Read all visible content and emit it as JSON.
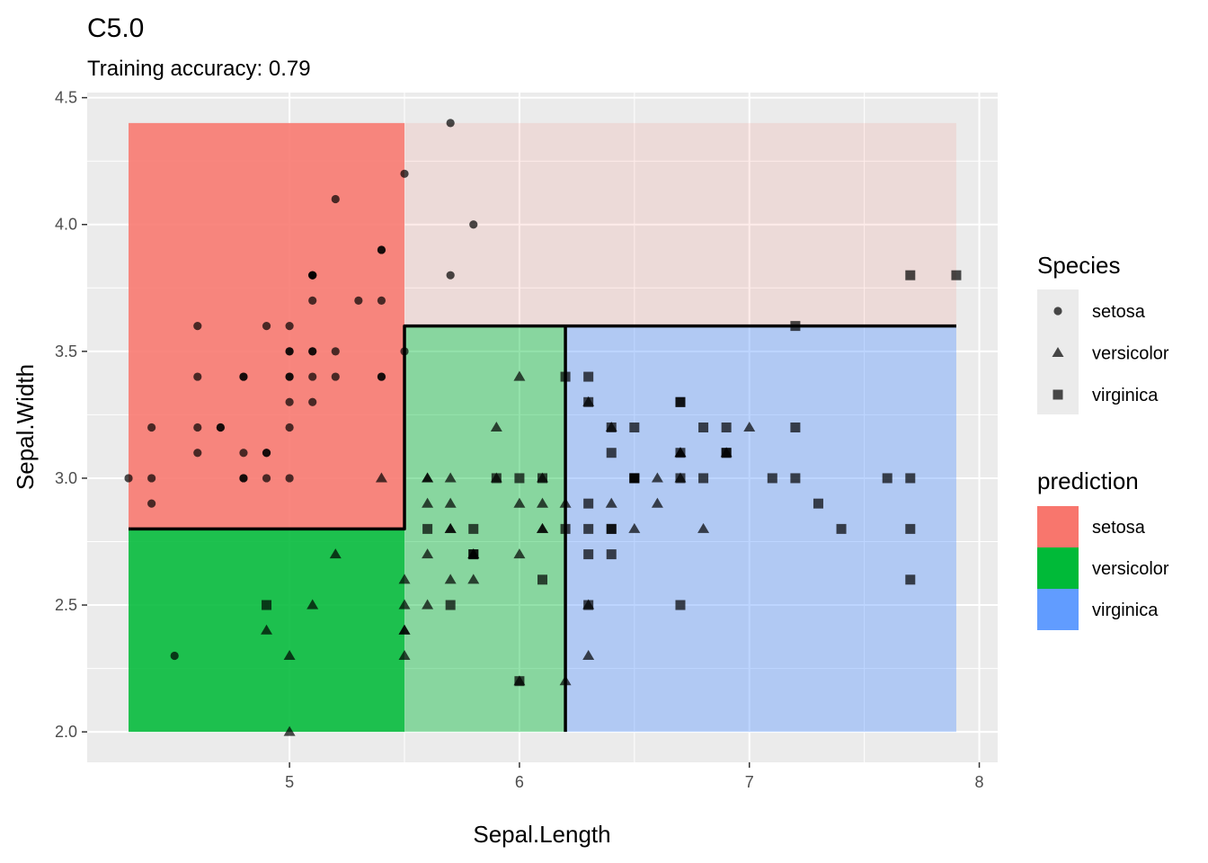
{
  "chart_data": {
    "type": "scatter",
    "title": "C5.0",
    "subtitle": "Training accuracy: 0.79",
    "xlabel": "Sepal.Length",
    "ylabel": "Sepal.Width",
    "xlim": [
      4.12,
      8.08
    ],
    "ylim": [
      1.88,
      4.52
    ],
    "x_ticks": [
      "5",
      "6",
      "7",
      "8"
    ],
    "y_ticks": [
      "2.0",
      "2.5",
      "3.0",
      "3.5",
      "4.0",
      "4.5"
    ],
    "grid": true,
    "legend_position": "right",
    "prediction_regions": [
      {
        "class": "setosa",
        "x": [
          4.3,
          5.5
        ],
        "y": [
          2.8,
          4.4
        ],
        "highlight": true
      },
      {
        "class": "setosa",
        "x": [
          5.5,
          7.9
        ],
        "y": [
          3.6,
          4.4
        ],
        "highlight": false
      },
      {
        "class": "versicolor",
        "x": [
          4.3,
          5.5
        ],
        "y": [
          2.0,
          2.8
        ],
        "highlight": true
      },
      {
        "class": "versicolor",
        "x": [
          5.5,
          6.2
        ],
        "y": [
          2.0,
          3.6
        ],
        "highlight": false
      },
      {
        "class": "virginica",
        "x": [
          6.2,
          7.9
        ],
        "y": [
          2.0,
          3.6
        ],
        "highlight": false
      }
    ],
    "decision_boundary": [
      [
        [
          4.3,
          2.8
        ],
        [
          5.5,
          2.8
        ],
        [
          5.5,
          3.6
        ],
        [
          7.9,
          3.6
        ]
      ],
      [
        [
          6.2,
          2.0
        ],
        [
          6.2,
          3.6
        ]
      ]
    ],
    "series": [
      {
        "name": "setosa",
        "shape": "circle",
        "points": [
          [
            5.1,
            3.5
          ],
          [
            4.9,
            3.0
          ],
          [
            4.7,
            3.2
          ],
          [
            4.6,
            3.1
          ],
          [
            5.0,
            3.6
          ],
          [
            5.4,
            3.9
          ],
          [
            4.6,
            3.4
          ],
          [
            5.0,
            3.4
          ],
          [
            4.4,
            2.9
          ],
          [
            4.9,
            3.1
          ],
          [
            5.4,
            3.7
          ],
          [
            4.8,
            3.4
          ],
          [
            4.8,
            3.0
          ],
          [
            4.3,
            3.0
          ],
          [
            5.8,
            4.0
          ],
          [
            5.7,
            4.4
          ],
          [
            5.4,
            3.9
          ],
          [
            5.1,
            3.5
          ],
          [
            5.7,
            3.8
          ],
          [
            5.1,
            3.8
          ],
          [
            5.4,
            3.4
          ],
          [
            5.1,
            3.7
          ],
          [
            4.6,
            3.6
          ],
          [
            5.1,
            3.3
          ],
          [
            4.8,
            3.4
          ],
          [
            5.0,
            3.0
          ],
          [
            5.0,
            3.4
          ],
          [
            5.2,
            3.5
          ],
          [
            5.2,
            3.4
          ],
          [
            4.7,
            3.2
          ],
          [
            4.8,
            3.1
          ],
          [
            5.4,
            3.4
          ],
          [
            5.2,
            4.1
          ],
          [
            5.5,
            4.2
          ],
          [
            4.9,
            3.1
          ],
          [
            5.0,
            3.2
          ],
          [
            5.5,
            3.5
          ],
          [
            4.9,
            3.6
          ],
          [
            4.4,
            3.0
          ],
          [
            5.1,
            3.4
          ],
          [
            5.0,
            3.5
          ],
          [
            4.5,
            2.3
          ],
          [
            4.4,
            3.2
          ],
          [
            5.0,
            3.5
          ],
          [
            5.1,
            3.8
          ],
          [
            4.8,
            3.0
          ],
          [
            5.1,
            3.8
          ],
          [
            4.6,
            3.2
          ],
          [
            5.3,
            3.7
          ],
          [
            5.0,
            3.3
          ]
        ]
      },
      {
        "name": "versicolor",
        "shape": "triangle",
        "points": [
          [
            7.0,
            3.2
          ],
          [
            6.4,
            3.2
          ],
          [
            6.9,
            3.1
          ],
          [
            5.5,
            2.3
          ],
          [
            6.5,
            2.8
          ],
          [
            5.7,
            2.8
          ],
          [
            6.3,
            3.3
          ],
          [
            4.9,
            2.4
          ],
          [
            6.6,
            2.9
          ],
          [
            5.2,
            2.7
          ],
          [
            5.0,
            2.0
          ],
          [
            5.9,
            3.0
          ],
          [
            6.0,
            2.2
          ],
          [
            6.1,
            2.9
          ],
          [
            5.6,
            2.9
          ],
          [
            6.7,
            3.1
          ],
          [
            5.6,
            3.0
          ],
          [
            5.8,
            2.7
          ],
          [
            6.2,
            2.2
          ],
          [
            5.6,
            2.5
          ],
          [
            5.9,
            3.2
          ],
          [
            6.1,
            2.8
          ],
          [
            6.3,
            2.5
          ],
          [
            6.1,
            2.8
          ],
          [
            6.4,
            2.9
          ],
          [
            6.6,
            3.0
          ],
          [
            6.8,
            2.8
          ],
          [
            6.7,
            3.0
          ],
          [
            6.0,
            2.9
          ],
          [
            5.7,
            2.6
          ],
          [
            5.5,
            2.4
          ],
          [
            5.5,
            2.4
          ],
          [
            5.8,
            2.7
          ],
          [
            6.0,
            2.7
          ],
          [
            5.4,
            3.0
          ],
          [
            6.0,
            3.4
          ],
          [
            6.7,
            3.1
          ],
          [
            6.3,
            2.3
          ],
          [
            5.6,
            3.0
          ],
          [
            5.5,
            2.5
          ],
          [
            5.5,
            2.6
          ],
          [
            6.1,
            3.0
          ],
          [
            5.8,
            2.6
          ],
          [
            5.0,
            2.3
          ],
          [
            5.6,
            2.7
          ],
          [
            5.7,
            3.0
          ],
          [
            5.7,
            2.9
          ],
          [
            6.2,
            2.9
          ],
          [
            5.1,
            2.5
          ],
          [
            5.7,
            2.8
          ]
        ]
      },
      {
        "name": "virginica",
        "shape": "square",
        "points": [
          [
            6.3,
            3.3
          ],
          [
            5.8,
            2.7
          ],
          [
            7.1,
            3.0
          ],
          [
            6.3,
            2.9
          ],
          [
            6.5,
            3.0
          ],
          [
            7.6,
            3.0
          ],
          [
            4.9,
            2.5
          ],
          [
            7.3,
            2.9
          ],
          [
            6.7,
            2.5
          ],
          [
            7.2,
            3.6
          ],
          [
            6.5,
            3.2
          ],
          [
            6.4,
            2.7
          ],
          [
            6.8,
            3.0
          ],
          [
            5.7,
            2.5
          ],
          [
            5.8,
            2.8
          ],
          [
            6.4,
            3.2
          ],
          [
            6.5,
            3.0
          ],
          [
            7.7,
            3.8
          ],
          [
            7.7,
            2.6
          ],
          [
            6.0,
            2.2
          ],
          [
            6.9,
            3.2
          ],
          [
            5.6,
            2.8
          ],
          [
            7.7,
            2.8
          ],
          [
            6.3,
            2.7
          ],
          [
            6.7,
            3.3
          ],
          [
            7.2,
            3.2
          ],
          [
            6.2,
            2.8
          ],
          [
            6.1,
            3.0
          ],
          [
            6.4,
            2.8
          ],
          [
            7.2,
            3.0
          ],
          [
            7.4,
            2.8
          ],
          [
            7.9,
            3.8
          ],
          [
            6.4,
            2.8
          ],
          [
            6.3,
            2.8
          ],
          [
            6.1,
            2.6
          ],
          [
            7.7,
            3.0
          ],
          [
            6.3,
            3.4
          ],
          [
            6.4,
            3.1
          ],
          [
            6.0,
            3.0
          ],
          [
            6.9,
            3.1
          ],
          [
            6.7,
            3.1
          ],
          [
            6.9,
            3.1
          ],
          [
            5.8,
            2.7
          ],
          [
            6.8,
            3.2
          ],
          [
            6.7,
            3.3
          ],
          [
            6.7,
            3.0
          ],
          [
            6.3,
            2.5
          ],
          [
            6.5,
            3.0
          ],
          [
            6.2,
            3.4
          ],
          [
            5.9,
            3.0
          ]
        ]
      }
    ]
  },
  "legend": {
    "species": {
      "title": "Species",
      "items": [
        {
          "label": "setosa",
          "shape": "circle"
        },
        {
          "label": "versicolor",
          "shape": "triangle"
        },
        {
          "label": "virginica",
          "shape": "square"
        }
      ]
    },
    "prediction": {
      "title": "prediction",
      "items": [
        {
          "label": "setosa",
          "color": "#F8766D"
        },
        {
          "label": "versicolor",
          "color": "#00BA38"
        },
        {
          "label": "virginica",
          "color": "#619CFF"
        }
      ]
    }
  },
  "colors": {
    "panel_background": "#EBEBEB",
    "grid_major": "#FFFFFF",
    "point": "#000000",
    "boundary": "#000000",
    "setosa": "#F8766D",
    "versicolor": "#00BA38",
    "virginica": "#619CFF"
  }
}
